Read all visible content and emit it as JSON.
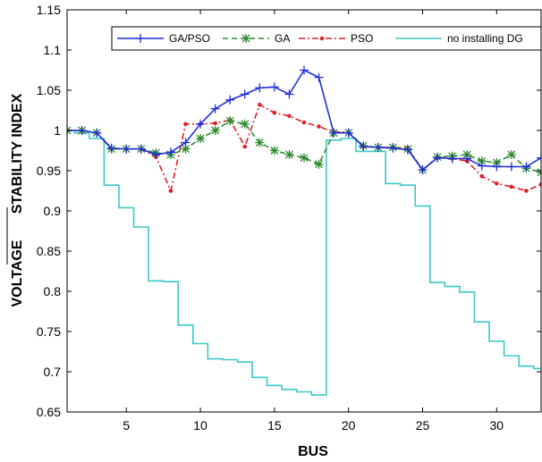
{
  "chart_data": {
    "type": "line",
    "title": "",
    "xlabel": "BUS",
    "ylabel": "VOLTAGE    STABILITY INDEX",
    "ylabel_parts": [
      "VOLTAGE",
      "STABILITY INDEX"
    ],
    "xlim": [
      1,
      33
    ],
    "ylim": [
      0.65,
      1.15
    ],
    "xticks": [
      5,
      10,
      15,
      20,
      25,
      30
    ],
    "yticks": [
      0.65,
      0.7,
      0.75,
      0.8,
      0.85,
      0.9,
      0.95,
      1,
      1.05,
      1.1,
      1.15
    ],
    "ytick_labels": [
      "0.65",
      "0.7",
      "0.75",
      "0.8",
      "0.85",
      "0.9",
      "0.95",
      "1",
      "1.05",
      "1.1",
      "1.15"
    ],
    "xtick_labels": [
      "5",
      "10",
      "15",
      "20",
      "25",
      "30"
    ],
    "grid": false,
    "legend_position": "top",
    "x": [
      1,
      2,
      3,
      4,
      5,
      6,
      7,
      8,
      9,
      10,
      11,
      12,
      13,
      14,
      15,
      16,
      17,
      18,
      19,
      20,
      21,
      22,
      23,
      24,
      25,
      26,
      27,
      28,
      29,
      30,
      31,
      32,
      33
    ],
    "series": [
      {
        "name": "GA/PSO",
        "color": "#1f2fd8",
        "line": "solid",
        "marker": "plus",
        "values": [
          1.0,
          1.0,
          0.997,
          0.978,
          0.977,
          0.977,
          0.97,
          0.973,
          0.985,
          1.008,
          1.027,
          1.038,
          1.045,
          1.053,
          1.054,
          1.045,
          1.075,
          1.066,
          0.997,
          0.997,
          0.98,
          0.979,
          0.978,
          0.976,
          0.951,
          0.966,
          0.965,
          0.965,
          0.956,
          0.955,
          0.955,
          0.955,
          0.966
        ]
      },
      {
        "name": "GA",
        "color": "#2e8b2e",
        "line": "dashed",
        "marker": "star",
        "values": [
          1.0,
          1.0,
          0.997,
          0.977,
          0.977,
          0.977,
          0.972,
          0.97,
          0.977,
          0.99,
          1.0,
          1.012,
          1.008,
          0.985,
          0.975,
          0.97,
          0.966,
          0.958,
          0.997,
          0.997,
          0.981,
          0.979,
          0.979,
          0.977,
          0.951,
          0.967,
          0.968,
          0.97,
          0.962,
          0.96,
          0.97,
          0.953,
          0.948
        ]
      },
      {
        "name": "PSO",
        "color": "#e0202a",
        "line": "dashdot",
        "marker": "dot",
        "values": [
          1.0,
          1.0,
          0.997,
          0.977,
          0.977,
          0.977,
          0.967,
          0.925,
          1.008,
          1.008,
          1.009,
          1.013,
          0.98,
          1.032,
          1.022,
          1.018,
          1.01,
          1.005,
          0.998,
          0.998,
          0.98,
          0.979,
          0.979,
          0.978,
          0.951,
          0.966,
          0.965,
          0.962,
          0.943,
          0.934,
          0.93,
          0.925,
          0.933
        ]
      },
      {
        "name": "no installing DG",
        "color": "#3cc8c8",
        "line": "solid",
        "marker": "none",
        "step": true,
        "values": [
          1.0,
          0.997,
          0.99,
          0.932,
          0.904,
          0.88,
          0.813,
          0.812,
          0.758,
          0.735,
          0.716,
          0.715,
          0.712,
          0.693,
          0.683,
          0.678,
          0.675,
          0.671,
          0.988,
          0.99,
          0.974,
          0.974,
          0.934,
          0.932,
          0.906,
          0.811,
          0.806,
          0.799,
          0.762,
          0.738,
          0.72,
          0.707,
          0.704
        ]
      }
    ]
  }
}
